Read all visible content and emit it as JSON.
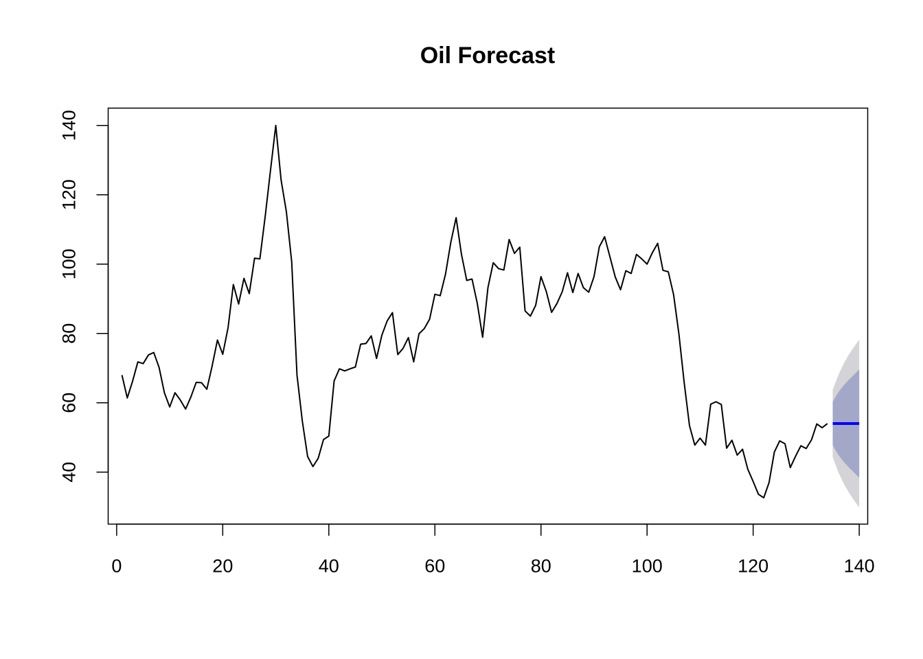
{
  "chart_data": {
    "type": "line",
    "title": "Oil Forecast",
    "xlabel": "",
    "ylabel": "",
    "xlim": [
      -1.6,
      141.6
    ],
    "ylim": [
      25,
      145
    ],
    "x_ticks": [
      0,
      20,
      40,
      60,
      80,
      100,
      120,
      140
    ],
    "x_tick_labels": [
      "0",
      "20",
      "40",
      "60",
      "80",
      "100",
      "120",
      "140"
    ],
    "y_ticks": [
      40,
      60,
      80,
      100,
      120,
      140
    ],
    "y_tick_labels": [
      "40",
      "60",
      "80",
      "100",
      "120",
      "140"
    ],
    "grid": false,
    "colors": {
      "series": "#000000",
      "forecast": "#0000ff",
      "band80": "#a4a8c8",
      "band95": "#d4d4d8"
    },
    "series": [
      {
        "name": "observed",
        "x_start": 1,
        "values": [
          68.0,
          61.4,
          66.2,
          71.8,
          71.3,
          73.8,
          74.5,
          70.2,
          62.9,
          58.8,
          62.9,
          60.8,
          58.2,
          61.7,
          65.9,
          65.8,
          63.9,
          70.6,
          78.1,
          74.0,
          81.6,
          94.1,
          88.5,
          95.9,
          91.5,
          101.7,
          101.5,
          113.7,
          127.0,
          140.0,
          124.3,
          115.1,
          100.7,
          68.0,
          54.8,
          44.5,
          41.6,
          44.0,
          49.4,
          50.4,
          66.3,
          69.8,
          69.2,
          69.8,
          70.3,
          76.9,
          77.1,
          79.3,
          72.8,
          79.5,
          83.6,
          86.0,
          73.9,
          75.7,
          78.8,
          71.8,
          79.9,
          81.4,
          84.1,
          91.3,
          90.9,
          97.1,
          106.3,
          113.4,
          102.9,
          95.3,
          95.7,
          88.6,
          78.9,
          93.2,
          100.4,
          98.7,
          98.3,
          107.1,
          103.1,
          104.9,
          86.5,
          85.0,
          88.1,
          96.4,
          92.1,
          86.1,
          88.6,
          92.0,
          97.5,
          91.8,
          97.3,
          93.2,
          91.9,
          96.4,
          105.0,
          107.9,
          102.1,
          96.3,
          92.6,
          98.1,
          97.3,
          102.8,
          101.5,
          100.0,
          103.3,
          106.0,
          98.2,
          97.8,
          91.2,
          79.9,
          65.8,
          53.4,
          47.8,
          49.8,
          47.8,
          59.6,
          60.3,
          59.5,
          46.9,
          49.2,
          44.9,
          46.6,
          40.8,
          37.3,
          33.6,
          32.6,
          37.0,
          45.8,
          49.0,
          48.2,
          41.3,
          44.6,
          47.6,
          46.8,
          49.3,
          53.9,
          52.8,
          54.0
        ]
      },
      {
        "name": "forecast",
        "x": [
          135,
          136,
          137,
          138,
          139,
          140
        ],
        "values": [
          54.0,
          54.0,
          54.0,
          54.0,
          54.0,
          54.0
        ]
      }
    ],
    "intervals": [
      {
        "name": "80%",
        "x": [
          135,
          136,
          137,
          138,
          139,
          140
        ],
        "lower": [
          47.7,
          45.1,
          43.1,
          41.4,
          39.9,
          38.4
        ],
        "upper": [
          60.3,
          62.9,
          64.9,
          66.6,
          68.1,
          69.6
        ]
      },
      {
        "name": "95%",
        "x": [
          135,
          136,
          137,
          138,
          139,
          140
        ],
        "lower": [
          44.3,
          40.2,
          36.9,
          34.2,
          31.9,
          29.8
        ],
        "upper": [
          63.7,
          67.8,
          71.1,
          73.8,
          76.1,
          78.2
        ]
      }
    ]
  }
}
